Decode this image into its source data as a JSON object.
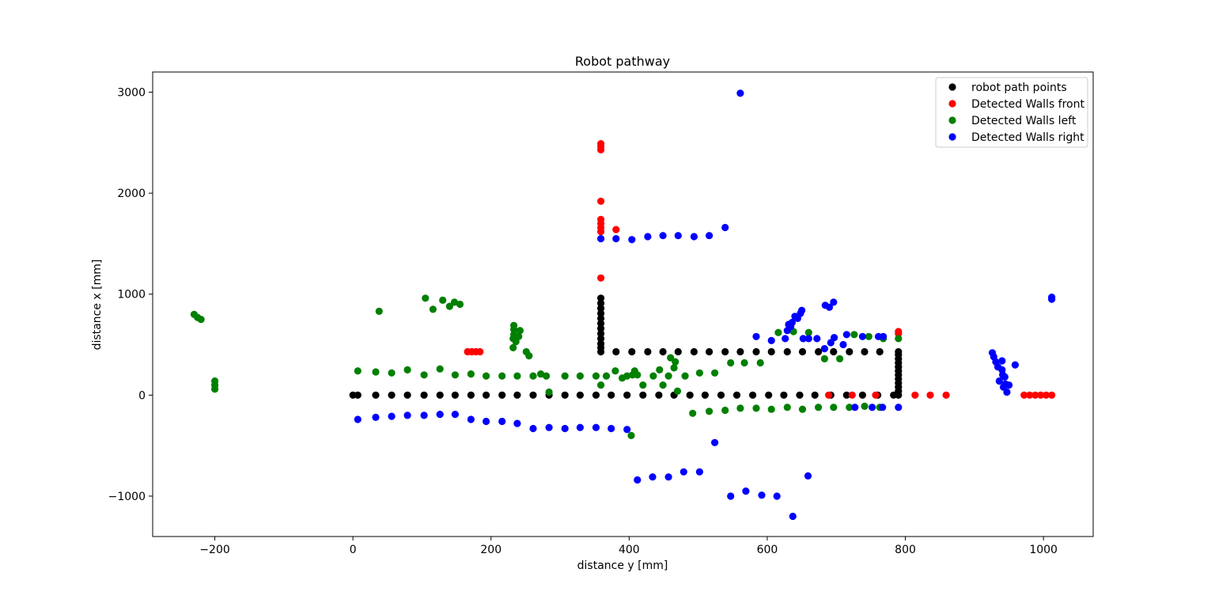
{
  "chart_data": {
    "type": "scatter",
    "title": "Robot pathway",
    "xlabel": "distance y [mm]",
    "ylabel": "distance x [mm]",
    "xlim": [
      -290,
      1072
    ],
    "ylim": [
      -1400,
      3200
    ],
    "xticks": [
      -200,
      0,
      200,
      400,
      600,
      800,
      1000
    ],
    "yticks": [
      -1000,
      0,
      1000,
      2000,
      3000
    ],
    "xtick_labels": [
      "−200",
      "0",
      "200",
      "400",
      "600",
      "800",
      "1000"
    ],
    "ytick_labels": [
      "−1000",
      "0",
      "1000",
      "2000",
      "3000"
    ],
    "grid": false,
    "legend_position": "top-right",
    "series": [
      {
        "name": "robot path points",
        "color": "#000000",
        "points": [
          [
            0,
            0
          ],
          [
            7,
            0
          ],
          [
            33,
            0
          ],
          [
            56,
            0
          ],
          [
            79,
            0
          ],
          [
            103,
            0
          ],
          [
            126,
            0
          ],
          [
            148,
            0
          ],
          [
            171,
            0
          ],
          [
            193,
            0
          ],
          [
            216,
            0
          ],
          [
            238,
            0
          ],
          [
            261,
            0
          ],
          [
            284,
            0
          ],
          [
            307,
            0
          ],
          [
            329,
            0
          ],
          [
            352,
            0
          ],
          [
            374,
            0
          ],
          [
            397,
            0
          ],
          [
            420,
            0
          ],
          [
            443,
            0
          ],
          [
            465,
            0
          ],
          [
            488,
            0
          ],
          [
            510,
            0
          ],
          [
            533,
            0
          ],
          [
            556,
            0
          ],
          [
            579,
            0
          ],
          [
            602,
            0
          ],
          [
            624,
            0
          ],
          [
            647,
            0
          ],
          [
            669,
            0
          ],
          [
            692,
            0
          ],
          [
            715,
            0
          ],
          [
            738,
            0
          ],
          [
            760,
            0
          ],
          [
            783,
            0
          ],
          [
            359,
            430
          ],
          [
            359,
            470
          ],
          [
            359,
            510
          ],
          [
            359,
            560
          ],
          [
            359,
            610
          ],
          [
            359,
            660
          ],
          [
            359,
            710
          ],
          [
            359,
            760
          ],
          [
            359,
            810
          ],
          [
            359,
            860
          ],
          [
            359,
            910
          ],
          [
            359,
            960
          ],
          [
            381,
            430
          ],
          [
            404,
            430
          ],
          [
            427,
            430
          ],
          [
            449,
            430
          ],
          [
            471,
            430
          ],
          [
            494,
            430
          ],
          [
            516,
            430
          ],
          [
            539,
            430
          ],
          [
            561,
            430
          ],
          [
            584,
            430
          ],
          [
            606,
            430
          ],
          [
            629,
            430
          ],
          [
            651,
            430
          ],
          [
            674,
            430
          ],
          [
            696,
            430
          ],
          [
            719,
            430
          ],
          [
            741,
            430
          ],
          [
            763,
            430
          ],
          [
            790,
            0
          ],
          [
            790,
            40
          ],
          [
            790,
            80
          ],
          [
            790,
            120
          ],
          [
            790,
            160
          ],
          [
            790,
            200
          ],
          [
            790,
            240
          ],
          [
            790,
            280
          ],
          [
            790,
            320
          ],
          [
            790,
            360
          ],
          [
            790,
            400
          ],
          [
            790,
            430
          ]
        ]
      },
      {
        "name": "Detected Walls front",
        "color": "#ff0000",
        "points": [
          [
            359,
            1160
          ],
          [
            359,
            1620
          ],
          [
            359,
            1660
          ],
          [
            359,
            1700
          ],
          [
            359,
            1740
          ],
          [
            359,
            1920
          ],
          [
            359,
            2430
          ],
          [
            359,
            2460
          ],
          [
            359,
            2490
          ],
          [
            381,
            1640
          ],
          [
            166,
            430
          ],
          [
            172,
            430
          ],
          [
            178,
            430
          ],
          [
            184,
            430
          ],
          [
            790,
            610
          ],
          [
            790,
            630
          ],
          [
            689,
            0
          ],
          [
            723,
            0
          ],
          [
            757,
            0
          ],
          [
            814,
            0
          ],
          [
            836,
            0
          ],
          [
            859,
            0
          ],
          [
            972,
            0
          ],
          [
            980,
            0
          ],
          [
            988,
            0
          ],
          [
            996,
            0
          ],
          [
            1004,
            0
          ],
          [
            1012,
            0
          ]
        ]
      },
      {
        "name": "Detected Walls left",
        "color": "#008000",
        "points": [
          [
            -230,
            800
          ],
          [
            -225,
            770
          ],
          [
            -220,
            750
          ],
          [
            -200,
            60
          ],
          [
            -200,
            100
          ],
          [
            -200,
            140
          ],
          [
            38,
            830
          ],
          [
            105,
            960
          ],
          [
            116,
            850
          ],
          [
            130,
            940
          ],
          [
            140,
            880
          ],
          [
            147,
            920
          ],
          [
            155,
            900
          ],
          [
            232,
            470
          ],
          [
            232,
            560
          ],
          [
            233,
            600
          ],
          [
            233,
            650
          ],
          [
            233,
            690
          ],
          [
            236,
            530
          ],
          [
            240,
            580
          ],
          [
            242,
            640
          ],
          [
            251,
            430
          ],
          [
            255,
            390
          ],
          [
            7,
            240
          ],
          [
            33,
            230
          ],
          [
            56,
            220
          ],
          [
            79,
            250
          ],
          [
            103,
            200
          ],
          [
            126,
            260
          ],
          [
            148,
            200
          ],
          [
            171,
            210
          ],
          [
            193,
            190
          ],
          [
            216,
            190
          ],
          [
            238,
            190
          ],
          [
            261,
            190
          ],
          [
            272,
            210
          ],
          [
            280,
            190
          ],
          [
            284,
            30
          ],
          [
            307,
            190
          ],
          [
            329,
            190
          ],
          [
            352,
            190
          ],
          [
            359,
            100
          ],
          [
            367,
            190
          ],
          [
            380,
            240
          ],
          [
            390,
            170
          ],
          [
            397,
            190
          ],
          [
            403,
            -400
          ],
          [
            405,
            200
          ],
          [
            408,
            240
          ],
          [
            412,
            200
          ],
          [
            420,
            100
          ],
          [
            435,
            190
          ],
          [
            444,
            250
          ],
          [
            449,
            100
          ],
          [
            457,
            190
          ],
          [
            460,
            370
          ],
          [
            465,
            270
          ],
          [
            467,
            330
          ],
          [
            470,
            40
          ],
          [
            481,
            190
          ],
          [
            492,
            -180
          ],
          [
            502,
            220
          ],
          [
            516,
            -160
          ],
          [
            524,
            220
          ],
          [
            539,
            -150
          ],
          [
            547,
            320
          ],
          [
            561,
            -130
          ],
          [
            567,
            320
          ],
          [
            584,
            -130
          ],
          [
            590,
            320
          ],
          [
            606,
            -140
          ],
          [
            616,
            620
          ],
          [
            629,
            -120
          ],
          [
            638,
            630
          ],
          [
            651,
            -140
          ],
          [
            660,
            620
          ],
          [
            674,
            -120
          ],
          [
            683,
            360
          ],
          [
            696,
            -120
          ],
          [
            705,
            360
          ],
          [
            719,
            -120
          ],
          [
            726,
            600
          ],
          [
            741,
            -110
          ],
          [
            747,
            580
          ],
          [
            763,
            -120
          ],
          [
            768,
            560
          ],
          [
            790,
            560
          ]
        ]
      },
      {
        "name": "Detected Walls right",
        "color": "#0000ff",
        "points": [
          [
            7,
            -240
          ],
          [
            33,
            -220
          ],
          [
            56,
            -210
          ],
          [
            79,
            -200
          ],
          [
            103,
            -200
          ],
          [
            126,
            -190
          ],
          [
            148,
            -190
          ],
          [
            171,
            -240
          ],
          [
            193,
            -260
          ],
          [
            216,
            -260
          ],
          [
            238,
            -280
          ],
          [
            261,
            -330
          ],
          [
            284,
            -320
          ],
          [
            307,
            -330
          ],
          [
            329,
            -320
          ],
          [
            352,
            -320
          ],
          [
            374,
            -330
          ],
          [
            397,
            -340
          ],
          [
            359,
            1550
          ],
          [
            381,
            1550
          ],
          [
            404,
            1540
          ],
          [
            427,
            1570
          ],
          [
            449,
            1580
          ],
          [
            471,
            1580
          ],
          [
            494,
            1570
          ],
          [
            516,
            1580
          ],
          [
            539,
            1660
          ],
          [
            412,
            -840
          ],
          [
            434,
            -810
          ],
          [
            457,
            -810
          ],
          [
            479,
            -760
          ],
          [
            502,
            -760
          ],
          [
            524,
            -470
          ],
          [
            547,
            -1000
          ],
          [
            569,
            -950
          ],
          [
            592,
            -990
          ],
          [
            614,
            -1000
          ],
          [
            637,
            -1200
          ],
          [
            659,
            -800
          ],
          [
            561,
            2990
          ],
          [
            584,
            580
          ],
          [
            606,
            540
          ],
          [
            626,
            560
          ],
          [
            629,
            640
          ],
          [
            631,
            700
          ],
          [
            634,
            680
          ],
          [
            636,
            720
          ],
          [
            640,
            780
          ],
          [
            644,
            760
          ],
          [
            648,
            810
          ],
          [
            650,
            840
          ],
          [
            652,
            560
          ],
          [
            660,
            560
          ],
          [
            672,
            560
          ],
          [
            683,
            460
          ],
          [
            684,
            890
          ],
          [
            690,
            870
          ],
          [
            692,
            520
          ],
          [
            696,
            920
          ],
          [
            697,
            570
          ],
          [
            710,
            500
          ],
          [
            715,
            600
          ],
          [
            727,
            -120
          ],
          [
            738,
            580
          ],
          [
            752,
            -120
          ],
          [
            761,
            580
          ],
          [
            768,
            580
          ],
          [
            767,
            -120
          ],
          [
            790,
            -120
          ],
          [
            926,
            420
          ],
          [
            928,
            380
          ],
          [
            931,
            330
          ],
          [
            934,
            280
          ],
          [
            936,
            140
          ],
          [
            940,
            340
          ],
          [
            940,
            250
          ],
          [
            941,
            200
          ],
          [
            942,
            80
          ],
          [
            944,
            180
          ],
          [
            945,
            110
          ],
          [
            947,
            30
          ],
          [
            950,
            100
          ],
          [
            959,
            300
          ],
          [
            1012,
            950
          ],
          [
            1012,
            970
          ]
        ]
      }
    ]
  }
}
